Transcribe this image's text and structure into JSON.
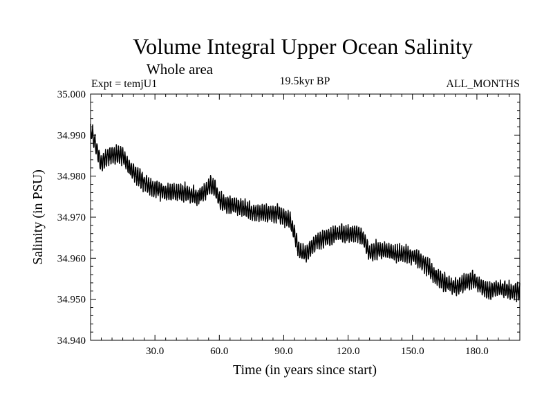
{
  "chart_data": {
    "type": "line",
    "title": "Volume Integral Upper Ocean Salinity",
    "subtitle": "Whole area",
    "annotations": {
      "left": "Expt = temjU1",
      "center": "19.5kyr BP",
      "right": "ALL_MONTHS"
    },
    "xlabel": "Time (in years since start)",
    "ylabel": "Salinity (in PSU)",
    "xlim": [
      0,
      200
    ],
    "ylim": [
      34.94,
      35.0
    ],
    "x_ticks": [
      30,
      60,
      90,
      120,
      150,
      180
    ],
    "x_tick_labels": [
      "30.0",
      "60.0",
      "90.0",
      "120.0",
      "150.0",
      "180.0"
    ],
    "y_ticks": [
      34.94,
      34.95,
      34.96,
      34.97,
      34.98,
      34.99,
      35.0
    ],
    "y_tick_labels": [
      "34.940",
      "34.950",
      "34.960",
      "34.970",
      "34.980",
      "34.990",
      "35.000"
    ],
    "grid": false,
    "series": [
      {
        "name": "Salinity",
        "sampling": "monthly",
        "trend_x": [
          0,
          1,
          5,
          8,
          12,
          15,
          18,
          22,
          26,
          30,
          35,
          40,
          45,
          50,
          53,
          56,
          58,
          60,
          63,
          67,
          72,
          77,
          82,
          87,
          90,
          93,
          95,
          97,
          100,
          102,
          105,
          110,
          115,
          120,
          125,
          128,
          130,
          133,
          137,
          142,
          147,
          152,
          157,
          160,
          165,
          170,
          175,
          178,
          182,
          186,
          190,
          195,
          200
        ],
        "trend_y": [
          34.991,
          34.99,
          34.983,
          34.985,
          34.985,
          34.985,
          34.982,
          34.98,
          34.978,
          34.977,
          34.976,
          34.976,
          34.976,
          34.975,
          34.976,
          34.978,
          34.977,
          34.974,
          34.973,
          34.973,
          34.972,
          34.971,
          34.971,
          34.971,
          34.97,
          34.969,
          34.966,
          34.962,
          34.961,
          34.962,
          34.964,
          34.965,
          34.966,
          34.966,
          34.966,
          34.964,
          34.961,
          34.962,
          34.962,
          34.961,
          34.961,
          34.96,
          34.958,
          34.956,
          34.954,
          34.953,
          34.954,
          34.955,
          34.953,
          34.952,
          34.953,
          34.952,
          34.952
        ],
        "oscillation_amplitude": 0.0022,
        "values_per_year": 12
      }
    ]
  }
}
